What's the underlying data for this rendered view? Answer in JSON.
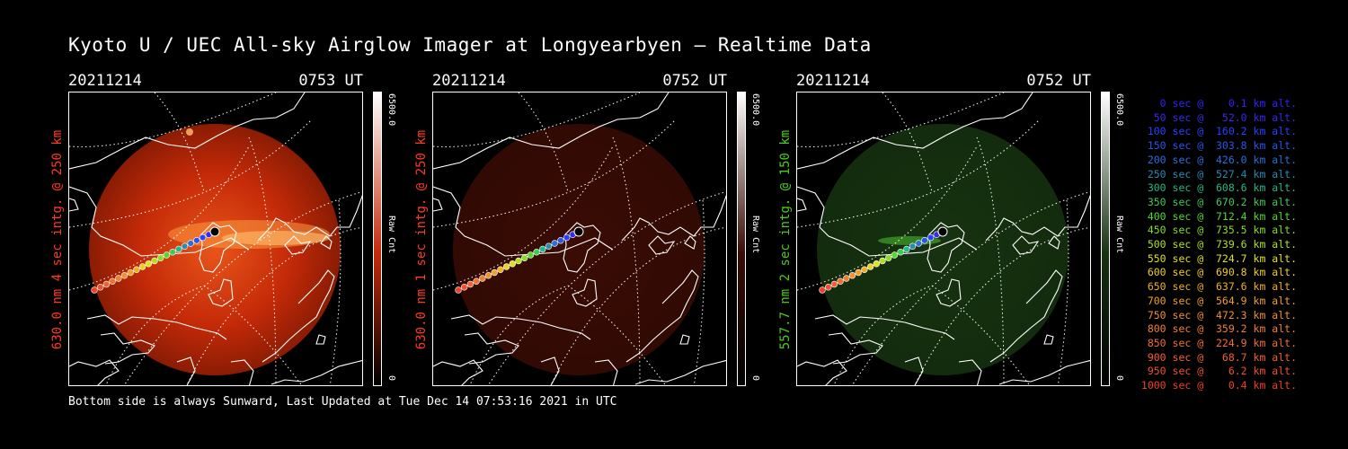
{
  "title": "Kyoto U / UEC All-sky Airglow Imager at Longyearbyen — Realtime Data",
  "footer": "Bottom side is always Sunward, Last Updated at Tue Dec 14 07:53:16 2021 in UTC",
  "panels": [
    {
      "date": "20211214",
      "time": "0753 UT",
      "ylabel": "630.0 nm 4 sec intg. @ 250 km",
      "label_color": "#ff3b1f",
      "cbar_max": "6500.0",
      "cbar_min": "0",
      "cbar_unit": "Raw Cnt",
      "image_color": "#c42a08",
      "scheme": "red",
      "brightness": "bright"
    },
    {
      "date": "20211214",
      "time": "0752 UT",
      "ylabel": "630.0 nm 1 sec intg. @ 250 km",
      "label_color": "#ff3b1f",
      "cbar_max": "6500.0",
      "cbar_min": "0",
      "cbar_unit": "Raw Cnt",
      "image_color": "#3a0c04",
      "scheme": "red",
      "brightness": "dim"
    },
    {
      "date": "20211214",
      "time": "0752 UT",
      "ylabel": "557.7 nm 2 sec intg. @ 150 km",
      "label_color": "#4ccc1a",
      "cbar_max": "6500.0",
      "cbar_min": "0",
      "cbar_unit": "Raw Cnt",
      "image_color": "#163310",
      "scheme": "green",
      "brightness": "dim"
    }
  ],
  "legend": [
    {
      "text": "   0 sec @    0.1 km alt.",
      "color": "#3020ff"
    },
    {
      "text": "  50 sec @   52.0 km alt.",
      "color": "#3828f0"
    },
    {
      "text": " 100 sec @  160.2 km alt.",
      "color": "#2a40ff"
    },
    {
      "text": " 150 sec @  303.8 km alt.",
      "color": "#2a55e8"
    },
    {
      "text": " 200 sec @  426.0 km alt.",
      "color": "#2a70d8"
    },
    {
      "text": " 250 sec @  527.4 km alt.",
      "color": "#2a8ab0"
    },
    {
      "text": " 300 sec @  608.6 km alt.",
      "color": "#22b888"
    },
    {
      "text": " 350 sec @  670.2 km alt.",
      "color": "#3ccc55"
    },
    {
      "text": " 400 sec @  712.4 km alt.",
      "color": "#55d82a"
    },
    {
      "text": " 450 sec @  735.5 km alt.",
      "color": "#88dd22"
    },
    {
      "text": " 500 sec @  739.6 km alt.",
      "color": "#b0e020"
    },
    {
      "text": " 550 sec @  724.7 km alt.",
      "color": "#e0e020"
    },
    {
      "text": " 600 sec @  690.8 km alt.",
      "color": "#f0d020"
    },
    {
      "text": " 650 sec @  637.6 km alt.",
      "color": "#f0b020"
    },
    {
      "text": " 700 sec @  564.9 km alt.",
      "color": "#f0a028"
    },
    {
      "text": " 750 sec @  472.3 km alt.",
      "color": "#f09030"
    },
    {
      "text": " 800 sec @  359.2 km alt.",
      "color": "#f08030"
    },
    {
      "text": " 850 sec @  224.9 km alt.",
      "color": "#f07030"
    },
    {
      "text": " 900 sec @   68.7 km alt.",
      "color": "#f06030"
    },
    {
      "text": " 950 sec @    6.2 km alt.",
      "color": "#f05030"
    },
    {
      "text": "1000 sec @    0.4 km alt.",
      "color": "#f04028"
    }
  ]
}
